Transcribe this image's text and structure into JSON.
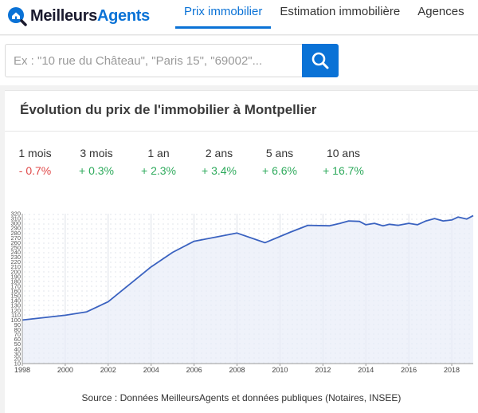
{
  "header": {
    "logo_part1": "Meilleurs",
    "logo_part2": "Agents",
    "nav": [
      {
        "label": "Prix immobilier",
        "active": true
      },
      {
        "label": "Estimation immobilière",
        "active": false
      },
      {
        "label": "Agences",
        "active": false
      }
    ]
  },
  "search": {
    "placeholder": "Ex : \"10 rue du Château\", \"Paris 15\", \"69002\"...",
    "icon": "search-icon"
  },
  "card": {
    "title": "Évolution du prix de l'immobilier à Montpellier",
    "periods": [
      {
        "label": "1 mois",
        "value": "- 0.7%",
        "trend": "neg"
      },
      {
        "label": "3 mois",
        "value": "+ 0.3%",
        "trend": "pos"
      },
      {
        "label": "1 an",
        "value": "+ 2.3%",
        "trend": "pos"
      },
      {
        "label": "2 ans",
        "value": "+ 3.4%",
        "trend": "pos"
      },
      {
        "label": "5 ans",
        "value": "+ 6.6%",
        "trend": "pos"
      },
      {
        "label": "10 ans",
        "value": "+ 16.7%",
        "trend": "pos"
      }
    ],
    "source": "Source : Données MeilleursAgents et données publiques (Notaires, INSEE)"
  },
  "colors": {
    "accent": "#0a72d6",
    "negative": "#e04848",
    "positive": "#2eaa5c",
    "line": "#3a62c0",
    "fill": "#e8edf8"
  },
  "chart_data": {
    "type": "area",
    "x": [
      1998,
      2000,
      2001,
      2002,
      2004,
      2005,
      2006,
      2008,
      2009.3,
      2010.5,
      2011.3,
      2012.3,
      2012.8,
      2013.2,
      2013.7,
      2014,
      2014.4,
      2014.8,
      2015.1,
      2015.5,
      2016,
      2016.4,
      2016.8,
      2017.2,
      2017.6,
      2018,
      2018.3,
      2018.7,
      2019
    ],
    "series": [
      {
        "values": [
          100,
          110,
          117,
          138,
          210,
          240,
          263,
          280,
          260,
          282,
          296,
          295,
          300,
          305,
          304,
          297,
          300,
          295,
          298,
          296,
          300,
          297,
          305,
          310,
          305,
          307,
          313,
          309,
          316
        ]
      }
    ],
    "ylim": [
      10,
      320
    ],
    "xlim": [
      1998,
      2019
    ],
    "x_ticks": [
      1998,
      2000,
      2002,
      2004,
      2006,
      2008,
      2010,
      2012,
      2014,
      2016,
      2018
    ],
    "y_ticks": [
      10,
      20,
      30,
      40,
      50,
      60,
      70,
      80,
      90,
      100,
      110,
      120,
      130,
      140,
      150,
      160,
      170,
      180,
      190,
      200,
      210,
      220,
      230,
      240,
      250,
      260,
      270,
      280,
      290,
      300,
      310,
      320
    ],
    "grid": true
  }
}
